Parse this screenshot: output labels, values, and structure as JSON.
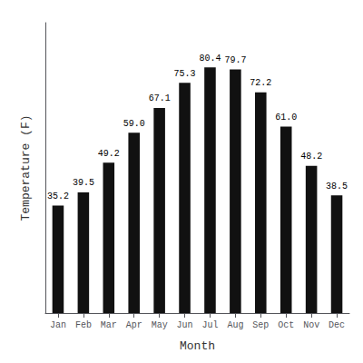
{
  "chart_data": {
    "type": "bar",
    "xlabel": "Month",
    "ylabel": "Temperature (F)",
    "categories": [
      "Jan",
      "Feb",
      "Mar",
      "Apr",
      "May",
      "Jun",
      "Jul",
      "Aug",
      "Sep",
      "Oct",
      "Nov",
      "Dec"
    ],
    "values": [
      35.2,
      39.5,
      49.2,
      59.0,
      67.1,
      75.3,
      80.4,
      79.7,
      72.2,
      61.0,
      48.2,
      38.5
    ],
    "value_labels": [
      "35.2",
      "39.5",
      "49.2",
      "59.0",
      "67.1",
      "75.3",
      "80.4",
      "79.7",
      "72.2",
      "61.0",
      "48.2",
      "38.5"
    ],
    "data_labels": true,
    "color": "#111111",
    "ylim": [
      0,
      95
    ],
    "tick_labels": "x",
    "grid": false
  }
}
